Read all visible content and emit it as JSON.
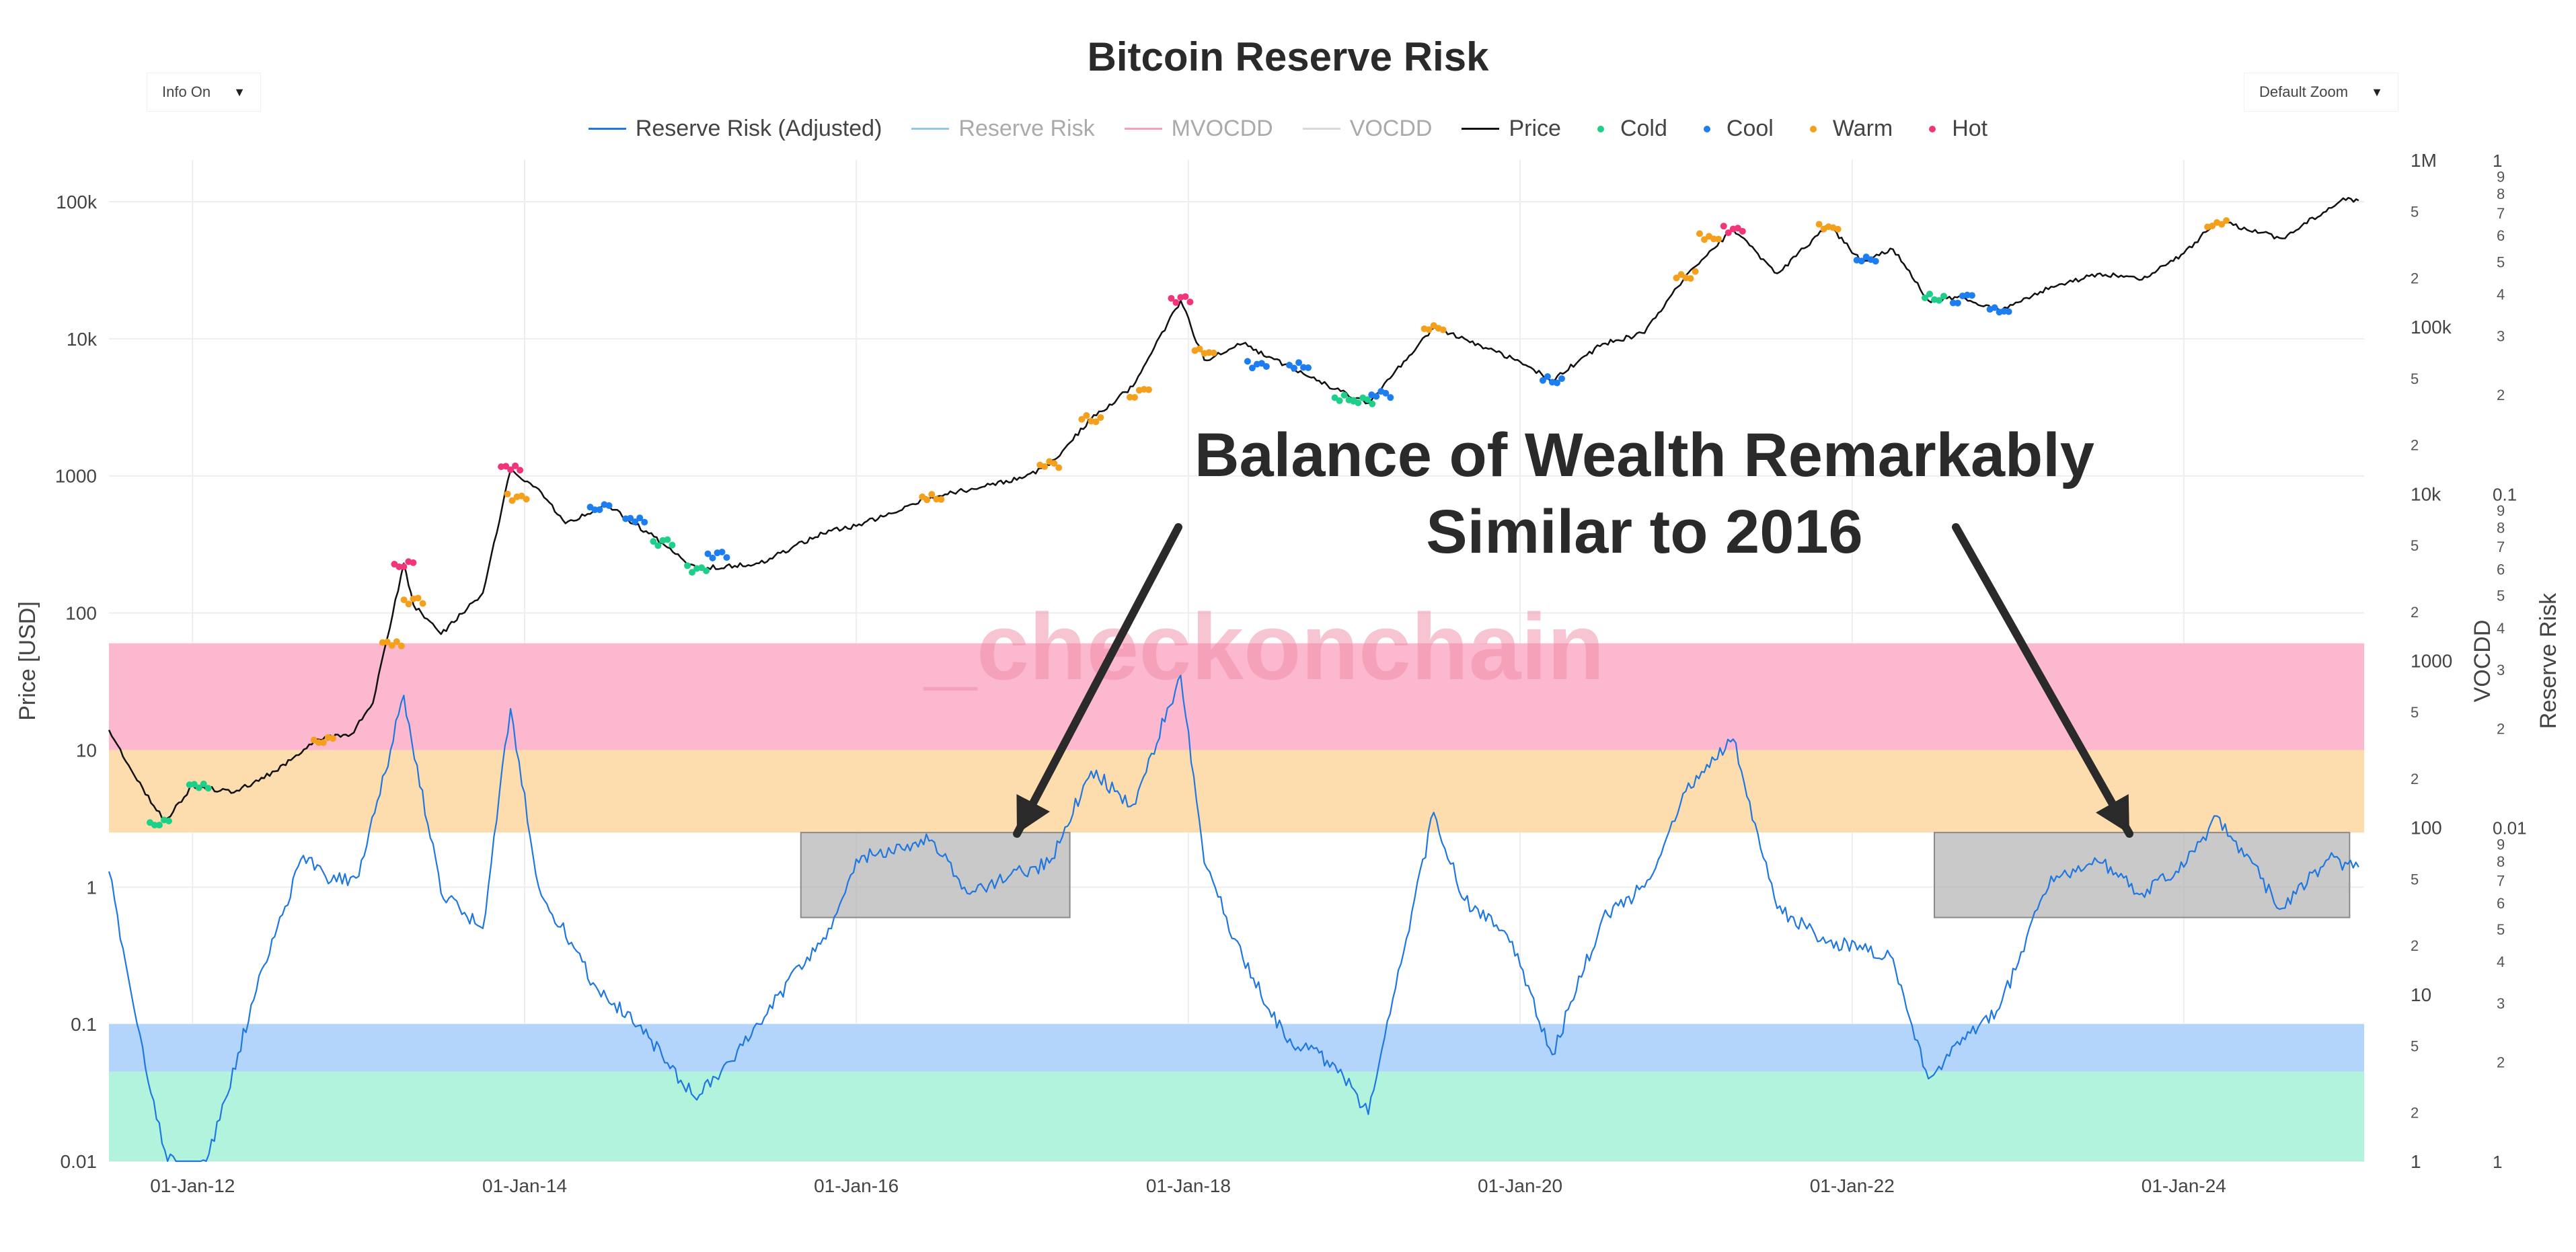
{
  "header": {
    "title": "Bitcoin Reserve Risk",
    "info_dropdown": "Info On",
    "zoom_dropdown": "Default Zoom",
    "caret": "▼"
  },
  "legend": [
    {
      "label": "Reserve Risk (Adjusted)",
      "kind": "line",
      "color": "#1f77e0",
      "active": true
    },
    {
      "label": "Reserve Risk",
      "kind": "line",
      "color": "#8ecae6",
      "active": false
    },
    {
      "label": "MVOCDD",
      "kind": "line",
      "color": "#f4a3b8",
      "active": false
    },
    {
      "label": "VOCDD",
      "kind": "line",
      "color": "#d9d9d9",
      "active": false
    },
    {
      "label": "Price",
      "kind": "line",
      "color": "#111111",
      "active": true
    },
    {
      "label": "Cold",
      "kind": "dot",
      "color": "#1ecf8a",
      "active": true
    },
    {
      "label": "Cool",
      "kind": "dot",
      "color": "#1c7ef0",
      "active": true
    },
    {
      "label": "Warm",
      "kind": "dot",
      "color": "#f4a01c",
      "active": true
    },
    {
      "label": "Hot",
      "kind": "dot",
      "color": "#f0357a",
      "active": true
    }
  ],
  "watermark": "_checkonchain",
  "annotation": {
    "line1": "Balance of Wealth Remarkably",
    "line2": "Similar to 2016"
  },
  "chart_data": {
    "type": "line",
    "title": "Bitcoin Reserve Risk",
    "x_axis": {
      "ticks": [
        "01-Jan-12",
        "01-Jan-14",
        "01-Jan-16",
        "01-Jan-18",
        "01-Jan-20",
        "01-Jan-22",
        "01-Jan-24"
      ],
      "range": [
        "2011-07-01",
        "2025-02-01"
      ]
    },
    "y_left": {
      "label": "Price [USD]",
      "scale": "log",
      "range": [
        0.01,
        100000
      ],
      "ticks": [
        "0.01",
        "0.1",
        "1",
        "10",
        "100",
        "1000",
        "10k",
        "100k"
      ]
    },
    "y_vocdd": {
      "label": "VOCDD",
      "scale": "log",
      "major_ticks": [
        "1",
        "10",
        "100",
        "1000",
        "10k",
        "100k",
        "1M"
      ],
      "minor_ticks": [
        "2",
        "5"
      ]
    },
    "y_reserve_risk": {
      "label": "Reserve Risk",
      "scale": "log",
      "major_ticks": [
        "0.01",
        "0.1",
        "1"
      ],
      "minor_ticks": [
        "2",
        "3",
        "4",
        "5",
        "6",
        "7",
        "8",
        "9"
      ]
    },
    "bands": [
      {
        "name": "Hot",
        "color": "#fcb8cf",
        "price_from": 10,
        "price_to": 60
      },
      {
        "name": "Warm",
        "color": "#fddcad",
        "price_from": 2.5,
        "price_to": 10
      },
      {
        "name": "Cool",
        "color": "#b3d4fb",
        "price_from": 0.045,
        "price_to": 0.1
      },
      {
        "name": "Cold",
        "color": "#b1f3dc",
        "price_from": 0.01,
        "price_to": 0.045
      }
    ],
    "highlight_boxes": [
      {
        "x_from": "2015-09-01",
        "x_to": "2017-04-15",
        "y_from": 0.6,
        "y_to": 2.5
      },
      {
        "x_from": "2022-07-01",
        "x_to": "2024-12-31",
        "y_from": 0.6,
        "y_to": 2.5
      }
    ],
    "series": [
      {
        "name": "Price",
        "color": "#111111",
        "points": [
          [
            "2011-07-01",
            14
          ],
          [
            "2011-09-01",
            6
          ],
          [
            "2011-11-01",
            3
          ],
          [
            "2012-01-01",
            5.5
          ],
          [
            "2012-04-01",
            4.9
          ],
          [
            "2012-07-01",
            7
          ],
          [
            "2012-10-01",
            12
          ],
          [
            "2012-12-15",
            13
          ],
          [
            "2013-02-01",
            22
          ],
          [
            "2013-04-10",
            230
          ],
          [
            "2013-05-01",
            115
          ],
          [
            "2013-07-01",
            70
          ],
          [
            "2013-10-01",
            140
          ],
          [
            "2013-12-01",
            1100
          ],
          [
            "2014-02-01",
            800
          ],
          [
            "2014-04-01",
            450
          ],
          [
            "2014-07-01",
            620
          ],
          [
            "2014-10-01",
            380
          ],
          [
            "2015-01-15",
            210
          ],
          [
            "2015-06-01",
            230
          ],
          [
            "2015-11-01",
            400
          ],
          [
            "2016-01-01",
            430
          ],
          [
            "2016-06-15",
            700
          ],
          [
            "2016-12-31",
            960
          ],
          [
            "2017-03-01",
            1200
          ],
          [
            "2017-06-01",
            2600
          ],
          [
            "2017-09-01",
            4500
          ],
          [
            "2017-12-15",
            19000
          ],
          [
            "2018-02-05",
            7000
          ],
          [
            "2018-05-01",
            9200
          ],
          [
            "2018-08-01",
            6500
          ],
          [
            "2018-11-20",
            4300
          ],
          [
            "2019-02-01",
            3400
          ],
          [
            "2019-06-25",
            12000
          ],
          [
            "2019-09-01",
            10000
          ],
          [
            "2019-12-15",
            7200
          ],
          [
            "2020-03-12",
            5000
          ],
          [
            "2020-07-01",
            9200
          ],
          [
            "2020-10-01",
            11000
          ],
          [
            "2020-12-31",
            29000
          ],
          [
            "2021-04-14",
            63000
          ],
          [
            "2021-07-20",
            30000
          ],
          [
            "2021-11-10",
            67000
          ],
          [
            "2022-01-24",
            36000
          ],
          [
            "2022-04-01",
            45000
          ],
          [
            "2022-06-18",
            19000
          ],
          [
            "2022-09-01",
            20000
          ],
          [
            "2022-11-21",
            16000
          ],
          [
            "2023-03-15",
            24000
          ],
          [
            "2023-07-01",
            30000
          ],
          [
            "2023-10-01",
            27000
          ],
          [
            "2024-01-01",
            42000
          ],
          [
            "2024-03-14",
            72000
          ],
          [
            "2024-08-05",
            54000
          ],
          [
            "2024-11-15",
            90000
          ],
          [
            "2024-12-17",
            106000
          ],
          [
            "2025-01-20",
            102000
          ]
        ]
      },
      {
        "name": "Reserve Risk (Adjusted)",
        "color": "#1f77e0",
        "points": [
          [
            "2011-07-01",
            1.3
          ],
          [
            "2011-09-01",
            0.1
          ],
          [
            "2011-11-01",
            0.012
          ],
          [
            "2012-01-01",
            0.006
          ],
          [
            "2012-03-01",
            0.02
          ],
          [
            "2012-06-01",
            0.25
          ],
          [
            "2012-09-01",
            1.7
          ],
          [
            "2012-11-01",
            1.1
          ],
          [
            "2013-01-01",
            1.2
          ],
          [
            "2013-04-10",
            25
          ],
          [
            "2013-07-01",
            0.9
          ],
          [
            "2013-10-01",
            0.5
          ],
          [
            "2013-12-01",
            20
          ],
          [
            "2014-02-01",
            1.0
          ],
          [
            "2014-06-01",
            0.2
          ],
          [
            "2014-10-01",
            0.08
          ],
          [
            "2015-01-15",
            0.028
          ],
          [
            "2015-06-01",
            0.1
          ],
          [
            "2015-11-01",
            0.5
          ],
          [
            "2016-01-01",
            1.6
          ],
          [
            "2016-06-15",
            2.2
          ],
          [
            "2016-09-01",
            0.9
          ],
          [
            "2016-12-31",
            1.3
          ],
          [
            "2017-03-01",
            1.5
          ],
          [
            "2017-06-01",
            7
          ],
          [
            "2017-09-01",
            4
          ],
          [
            "2017-12-15",
            35
          ],
          [
            "2018-02-05",
            1.5
          ],
          [
            "2018-05-01",
            0.3
          ],
          [
            "2018-08-01",
            0.08
          ],
          [
            "2018-11-20",
            0.05
          ],
          [
            "2019-02-01",
            0.022
          ],
          [
            "2019-06-25",
            3.5
          ],
          [
            "2019-09-01",
            0.8
          ],
          [
            "2019-12-15",
            0.4
          ],
          [
            "2020-03-12",
            0.06
          ],
          [
            "2020-07-01",
            0.6
          ],
          [
            "2020-10-01",
            1.0
          ],
          [
            "2020-12-31",
            5
          ],
          [
            "2021-04-14",
            12
          ],
          [
            "2021-07-20",
            0.7
          ],
          [
            "2021-11-10",
            0.4
          ],
          [
            "2022-01-24",
            0.35
          ],
          [
            "2022-04-01",
            0.3
          ],
          [
            "2022-06-18",
            0.04
          ],
          [
            "2022-09-01",
            0.08
          ],
          [
            "2022-11-21",
            0.13
          ],
          [
            "2023-03-15",
            1.2
          ],
          [
            "2023-07-01",
            1.5
          ],
          [
            "2023-10-01",
            0.9
          ],
          [
            "2024-01-01",
            1.4
          ],
          [
            "2024-03-14",
            3.3
          ],
          [
            "2024-08-05",
            0.7
          ],
          [
            "2024-11-15",
            1.6
          ],
          [
            "2025-01-20",
            1.4
          ]
        ]
      }
    ],
    "price_markers": [
      {
        "state": "Cold",
        "color": "#1ecf8a",
        "points": [
          [
            "2011-10-20",
            3
          ],
          [
            "2012-01-15",
            5.5
          ],
          [
            "2014-11-01",
            320
          ],
          [
            "2015-01-15",
            210
          ],
          [
            "2018-12-10",
            3700
          ],
          [
            "2019-01-20",
            3500
          ],
          [
            "2022-07-01",
            20000
          ]
        ]
      },
      {
        "state": "Cool",
        "color": "#1c7ef0",
        "points": [
          [
            "2014-06-15",
            600
          ],
          [
            "2014-09-01",
            480
          ],
          [
            "2015-03-01",
            260
          ],
          [
            "2018-06-01",
            6500
          ],
          [
            "2018-09-01",
            6400
          ],
          [
            "2019-03-01",
            3900
          ],
          [
            "2020-03-12",
            5000
          ],
          [
            "2022-09-01",
            19500
          ],
          [
            "2022-11-21",
            16000
          ],
          [
            "2022-02-01",
            38000
          ]
        ]
      },
      {
        "state": "Warm",
        "color": "#f4a01c",
        "points": [
          [
            "2012-10-15",
            12
          ],
          [
            "2013-03-15",
            60
          ],
          [
            "2013-05-01",
            120
          ],
          [
            "2013-12-15",
            700
          ],
          [
            "2016-06-15",
            700
          ],
          [
            "2017-03-01",
            1200
          ],
          [
            "2017-06-01",
            2600
          ],
          [
            "2017-09-15",
            4000
          ],
          [
            "2018-02-05",
            8000
          ],
          [
            "2019-06-25",
            12000
          ],
          [
            "2020-12-31",
            29000
          ],
          [
            "2021-02-20",
            55000
          ],
          [
            "2021-11-10",
            65000
          ],
          [
            "2024-03-14",
            70000
          ]
        ]
      },
      {
        "state": "Hot",
        "color": "#f0357a",
        "points": [
          [
            "2013-04-10",
            230
          ],
          [
            "2013-12-01",
            1150
          ],
          [
            "2017-12-15",
            19000
          ],
          [
            "2021-04-14",
            63000
          ]
        ]
      }
    ]
  }
}
